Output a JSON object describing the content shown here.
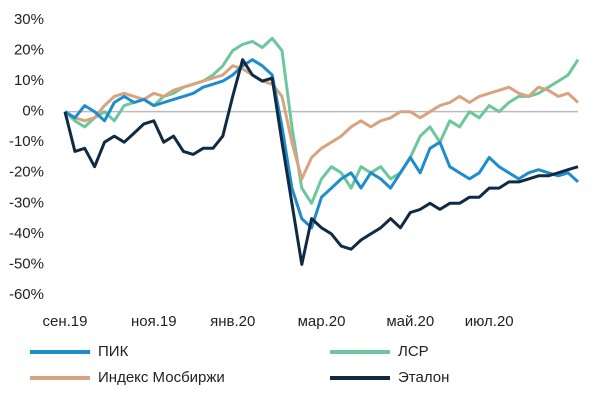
{
  "chart_data": {
    "type": "line",
    "categories": [
      "сен.19",
      null,
      null,
      null,
      null,
      null,
      null,
      null,
      null,
      "ноя.19",
      null,
      null,
      null,
      null,
      null,
      null,
      null,
      "янв.20",
      null,
      null,
      null,
      null,
      null,
      null,
      null,
      null,
      "мар.20",
      null,
      null,
      null,
      null,
      null,
      null,
      null,
      null,
      "май.20",
      null,
      null,
      null,
      null,
      null,
      null,
      null,
      "июл.20",
      null,
      null,
      null,
      null,
      null,
      null,
      null,
      null,
      null
    ],
    "series": [
      {
        "name": "ПИК",
        "color": "#1f8ccc",
        "values": [
          0,
          -2,
          2,
          0,
          -3,
          3,
          5,
          3,
          4,
          2,
          3,
          4,
          5,
          6,
          8,
          9,
          10,
          12,
          15,
          17,
          15,
          12,
          -5,
          -25,
          -35,
          -38,
          -28,
          -25,
          -22,
          -20,
          -25,
          -20,
          -22,
          -25,
          -20,
          -15,
          -20,
          -12,
          -10,
          -18,
          -20,
          -22,
          -20,
          -15,
          -18,
          -20,
          -22,
          -20,
          -19,
          -20,
          -21,
          -20,
          -23
        ]
      },
      {
        "name": "ЛСР",
        "color": "#6dc79c",
        "values": [
          0,
          -3,
          -5,
          -2,
          0,
          -3,
          2,
          3,
          4,
          2,
          5,
          6,
          8,
          9,
          10,
          12,
          15,
          20,
          22,
          23,
          21,
          24,
          20,
          -5,
          -25,
          -30,
          -22,
          -18,
          -20,
          -25,
          -18,
          -20,
          -18,
          -22,
          -20,
          -15,
          -8,
          -5,
          -10,
          -3,
          -5,
          0,
          -2,
          2,
          0,
          3,
          5,
          5,
          6,
          8,
          10,
          12,
          17
        ]
      },
      {
        "name": "Индекс Мосбиржи",
        "color": "#d9a37e",
        "values": [
          0,
          -2,
          -3,
          -2,
          2,
          5,
          6,
          5,
          4,
          6,
          5,
          7,
          8,
          9,
          10,
          11,
          12,
          15,
          14,
          12,
          10,
          9,
          5,
          -10,
          -22,
          -15,
          -12,
          -10,
          -8,
          -5,
          -3,
          -5,
          -3,
          -2,
          0,
          0,
          -2,
          0,
          2,
          3,
          5,
          3,
          5,
          6,
          7,
          8,
          6,
          5,
          8,
          7,
          5,
          6,
          3
        ]
      },
      {
        "name": "Эталон",
        "color": "#112a44",
        "values": [
          0,
          -13,
          -12,
          -18,
          -10,
          -8,
          -10,
          -7,
          -4,
          -3,
          -10,
          -8,
          -13,
          -14,
          -12,
          -12,
          -8,
          5,
          17,
          12,
          10,
          11,
          -10,
          -30,
          -50,
          -35,
          -38,
          -40,
          -44,
          -45,
          -42,
          -40,
          -38,
          -35,
          -38,
          -33,
          -32,
          -30,
          -32,
          -30,
          -30,
          -28,
          -28,
          -25,
          -25,
          -23,
          -23,
          -22,
          -21,
          -21,
          -20,
          -19,
          -18
        ]
      }
    ],
    "ylim": [
      -60,
      30
    ],
    "yticks": [
      {
        "value": 30,
        "label": "30%"
      },
      {
        "value": 20,
        "label": "20%"
      },
      {
        "value": 10,
        "label": "10%"
      },
      {
        "value": 0,
        "label": "0%"
      },
      {
        "value": -10,
        "label": "-10%"
      },
      {
        "value": -20,
        "label": "-20%"
      },
      {
        "value": -30,
        "label": "-30%"
      },
      {
        "value": -40,
        "label": "-40%"
      },
      {
        "value": -50,
        "label": "-50%"
      },
      {
        "value": -60,
        "label": "-60%"
      }
    ],
    "grid": false
  }
}
